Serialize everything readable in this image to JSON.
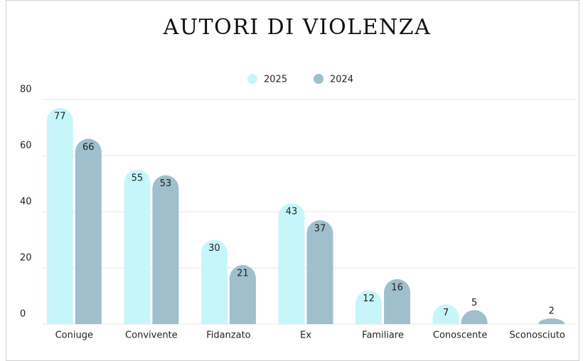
{
  "chart_data": {
    "type": "bar",
    "title": "AUTORI DI VIOLENZA",
    "categories": [
      "Coniuge",
      "Convivente",
      "Fidanzato",
      "Ex",
      "Familiare",
      "Conoscente",
      "Sconosciuto"
    ],
    "series": [
      {
        "name": "2025",
        "color": "#c6f6fa",
        "values": [
          77,
          55,
          30,
          43,
          12,
          7,
          0
        ]
      },
      {
        "name": "2024",
        "color": "#9fbfcc",
        "values": [
          66,
          53,
          21,
          37,
          16,
          5,
          2
        ]
      }
    ],
    "ylim": [
      0,
      80
    ],
    "yticks": [
      0,
      20,
      40,
      60,
      80
    ],
    "grid": true,
    "legend": "top"
  }
}
